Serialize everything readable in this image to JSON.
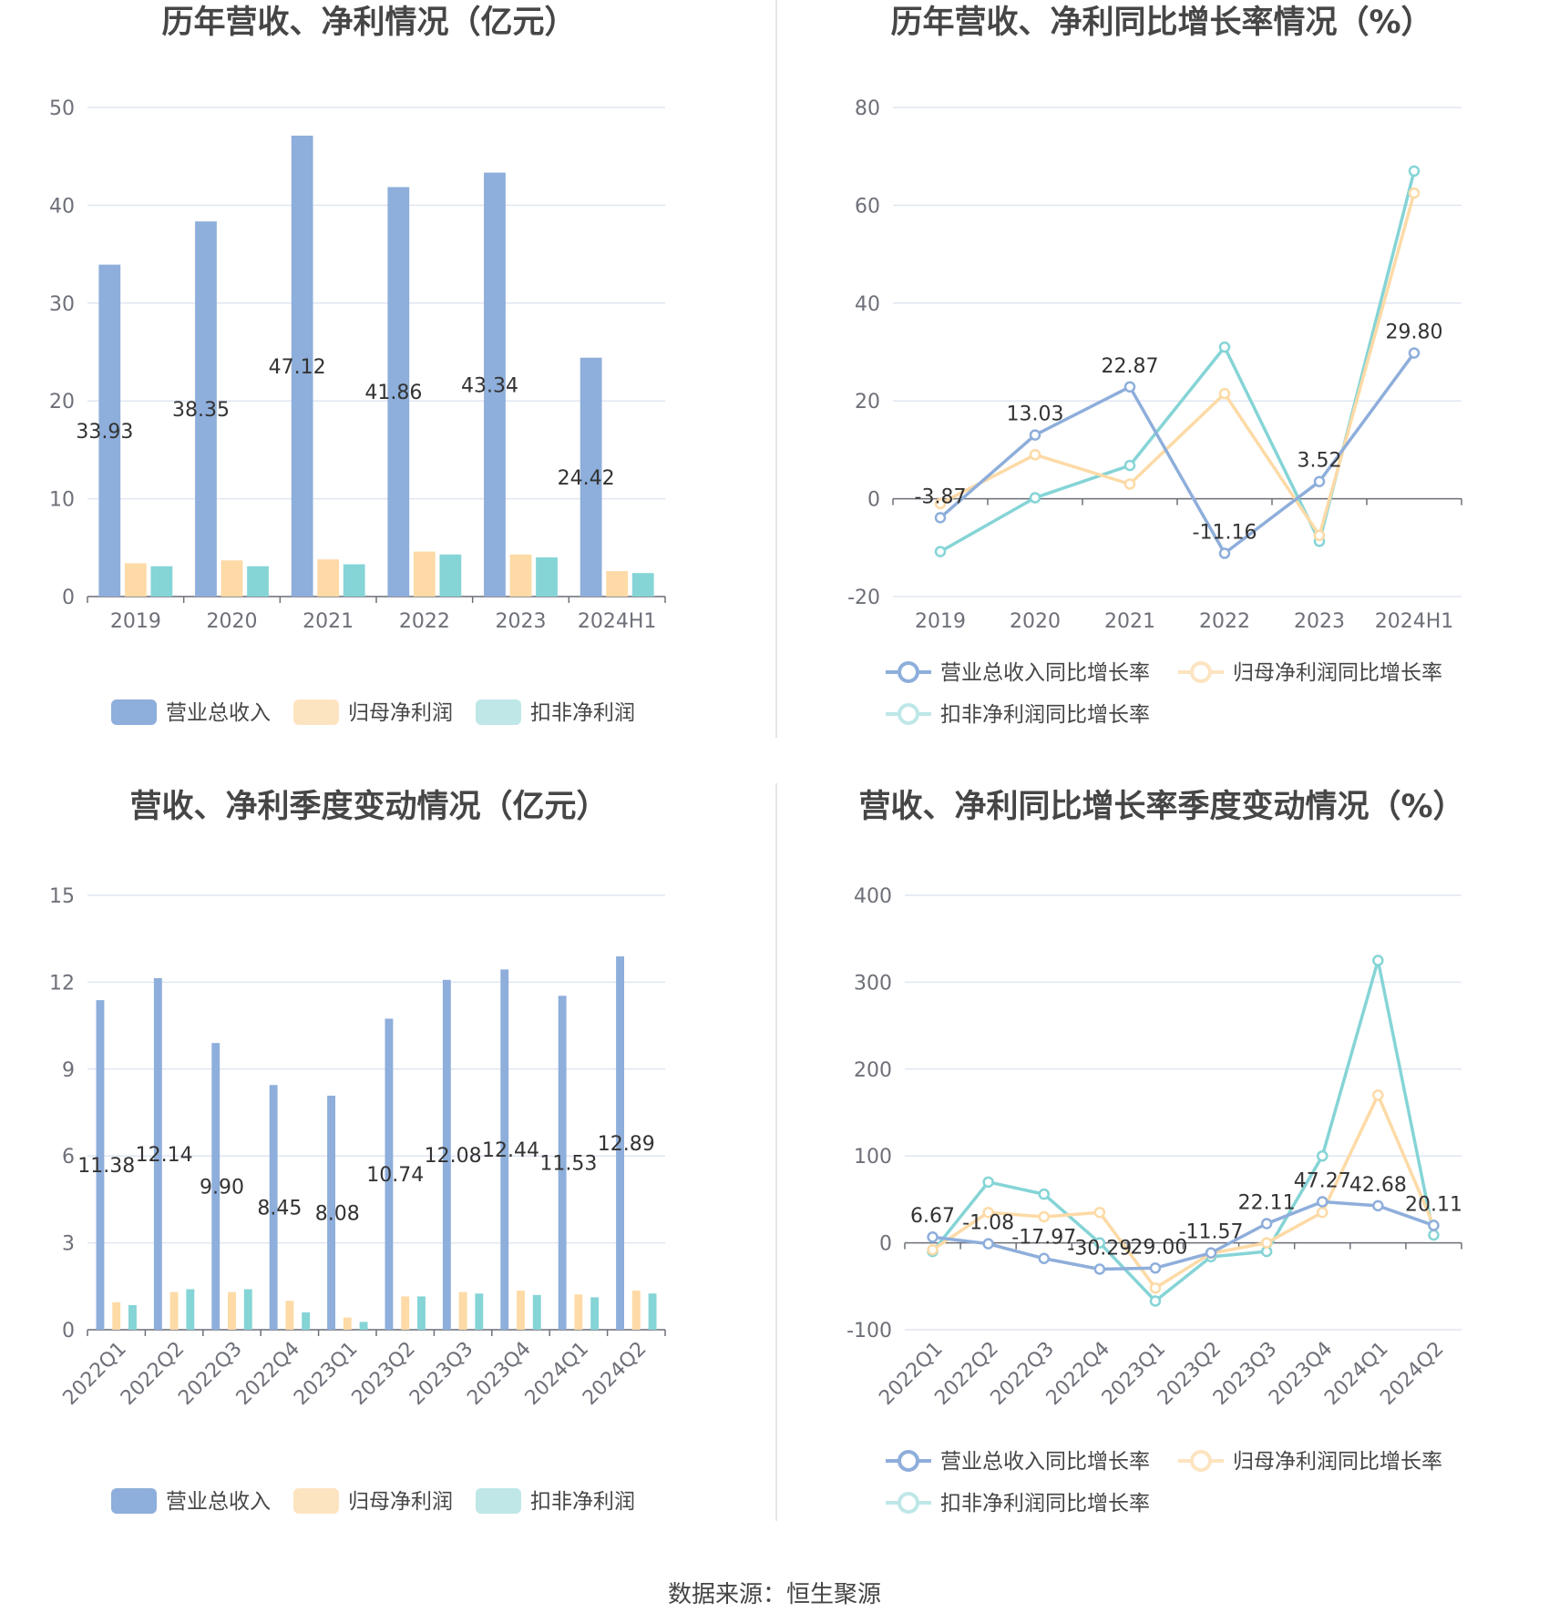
{
  "source": "数据来源：恒生聚源",
  "colors": {
    "revenue": "#8eaedb",
    "net_profit": "#fddaa6",
    "deducted_profit": "#85d4d6",
    "revenue_legend": "#8eaedb",
    "net_profit_legend": "#fde4c0",
    "deducted_profit_legend": "#bfe7e8"
  },
  "chart_data": [
    {
      "type": "bar",
      "title": "历年营收、净利情况（亿元）",
      "categories": [
        "2019",
        "2020",
        "2021",
        "2022",
        "2023",
        "2024H1"
      ],
      "ylim": [
        0,
        50
      ],
      "yticks": [
        0,
        10,
        20,
        30,
        40,
        50
      ],
      "legend": "bottom",
      "grid": true,
      "series": [
        {
          "name": "营业总收入",
          "values": [
            33.93,
            38.35,
            47.12,
            41.86,
            43.34,
            24.42
          ],
          "labels": [
            "33.93",
            "38.35",
            "47.12",
            "41.86",
            "43.34",
            "24.42"
          ]
        },
        {
          "name": "归母净利润",
          "values": [
            3.4,
            3.7,
            3.8,
            4.6,
            4.3,
            2.6
          ]
        },
        {
          "name": "扣非净利润",
          "values": [
            3.1,
            3.1,
            3.3,
            4.3,
            4.0,
            2.4
          ]
        }
      ]
    },
    {
      "type": "line",
      "title": "历年营收、净利同比增长率情况（%）",
      "categories": [
        "2019",
        "2020",
        "2021",
        "2022",
        "2023",
        "2024H1"
      ],
      "ylim": [
        -20,
        80
      ],
      "yticks": [
        -20,
        0,
        20,
        40,
        60,
        80
      ],
      "legend": "bottom",
      "grid": true,
      "series": [
        {
          "name": "营业总收入同比增长率",
          "values": [
            -3.87,
            13.03,
            22.87,
            -11.16,
            3.52,
            29.8
          ],
          "labels": [
            "-3.87",
            "13.03",
            "22.87",
            "-11.16",
            "3.52",
            "29.80"
          ]
        },
        {
          "name": "归母净利润同比增长率",
          "values": [
            -1.0,
            9.0,
            3.0,
            21.5,
            -7.5,
            62.5
          ]
        },
        {
          "name": "扣非净利润同比增长率",
          "values": [
            -10.8,
            0.2,
            6.8,
            31.0,
            -8.7,
            67.0
          ]
        }
      ]
    },
    {
      "type": "bar",
      "title": "营收、净利季度变动情况（亿元）",
      "categories": [
        "2022Q1",
        "2022Q2",
        "2022Q3",
        "2022Q4",
        "2023Q1",
        "2023Q2",
        "2023Q3",
        "2023Q4",
        "2024Q1",
        "2024Q2"
      ],
      "ylim": [
        0,
        15
      ],
      "yticks": [
        0,
        3,
        6,
        9,
        12,
        15
      ],
      "legend": "bottom",
      "grid": true,
      "series": [
        {
          "name": "营业总收入",
          "values": [
            11.38,
            12.14,
            9.9,
            8.45,
            8.08,
            10.74,
            12.08,
            12.44,
            11.53,
            12.89
          ],
          "labels": [
            "11.38",
            "12.14",
            "9.90",
            "8.45",
            "8.08",
            "10.74",
            "12.08",
            "12.44",
            "11.53",
            "12.89"
          ]
        },
        {
          "name": "归母净利润",
          "values": [
            0.95,
            1.3,
            1.3,
            1.0,
            0.42,
            1.15,
            1.3,
            1.35,
            1.22,
            1.35
          ]
        },
        {
          "name": "扣非净利润",
          "values": [
            0.85,
            1.4,
            1.4,
            0.6,
            0.27,
            1.15,
            1.25,
            1.2,
            1.12,
            1.25
          ]
        }
      ]
    },
    {
      "type": "line",
      "title": "营收、净利同比增长率季度变动情况（%）",
      "categories": [
        "2022Q1",
        "2022Q2",
        "2022Q3",
        "2022Q4",
        "2023Q1",
        "2023Q2",
        "2023Q3",
        "2023Q4",
        "2024Q1",
        "2024Q2"
      ],
      "ylim": [
        -100,
        400
      ],
      "yticks": [
        -100,
        0,
        100,
        200,
        300,
        400
      ],
      "legend": "bottom",
      "grid": true,
      "series": [
        {
          "name": "营业总收入同比增长率",
          "values": [
            6.67,
            -1.08,
            -17.97,
            -30.29,
            -29.0,
            -11.57,
            22.11,
            47.27,
            42.68,
            20.11
          ],
          "labels": [
            "6.67",
            "-1.08",
            "-17.97",
            "-30.29",
            "-29.00",
            "-11.57",
            "22.11",
            "47.27",
            "42.68",
            "20.11"
          ]
        },
        {
          "name": "归母净利润同比增长率",
          "values": [
            -8.0,
            35.0,
            30.0,
            35.0,
            -52.0,
            -12.0,
            0.0,
            35.0,
            170.0,
            20.0
          ]
        },
        {
          "name": "扣非净利润同比增长率",
          "values": [
            -10.0,
            70.0,
            56.0,
            0.0,
            -67.0,
            -16.0,
            -10.0,
            100.0,
            325.0,
            9.0
          ]
        }
      ]
    }
  ]
}
